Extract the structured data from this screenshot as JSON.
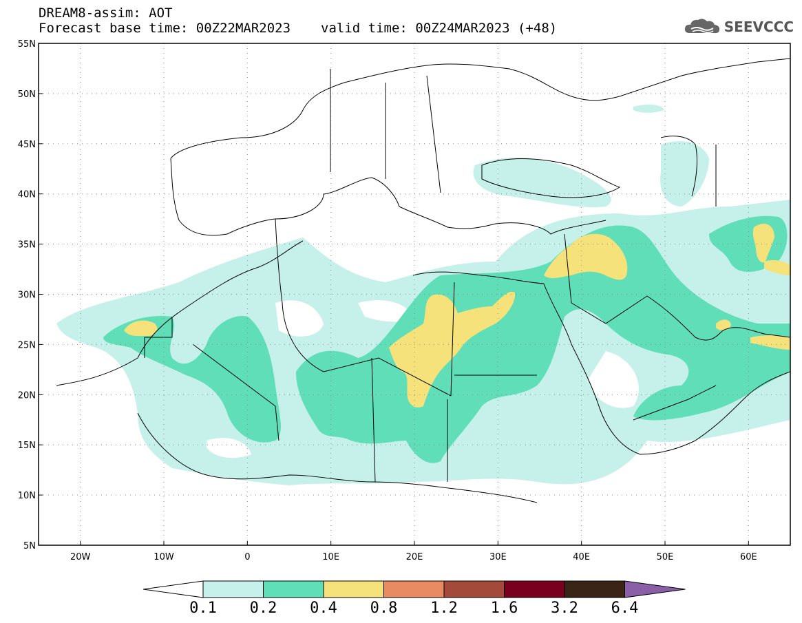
{
  "header": {
    "title": "DREAM8-assim: AOT",
    "base_time": "Forecast base time: 00Z22MAR2023",
    "valid_time": "valid time: 00Z24MAR2023 (+48)"
  },
  "logo": {
    "text": "SEEVCCC",
    "icon": "cloud-icon"
  },
  "axes": {
    "lon_labels": [
      "20W",
      "10W",
      "0",
      "10E",
      "20E",
      "30E",
      "40E",
      "50E",
      "60E"
    ],
    "lat_labels": [
      "55N",
      "50N",
      "45N",
      "40N",
      "35N",
      "30N",
      "25N",
      "20N",
      "15N",
      "10N",
      "5N"
    ],
    "lon_range": [
      -25,
      65
    ],
    "lat_range": [
      5,
      55
    ],
    "grid": "dotted"
  },
  "colorbar": {
    "labels": [
      "0.1",
      "0.2",
      "0.4",
      "0.8",
      "1.2",
      "1.6",
      "3.2",
      "6.4"
    ],
    "colors": [
      "#c6f0ea",
      "#5fdeb8",
      "#f5e27a",
      "#e88a62",
      "#a44a3a",
      "#7a0020",
      "#3a2416",
      "#8a5fa8"
    ]
  }
}
